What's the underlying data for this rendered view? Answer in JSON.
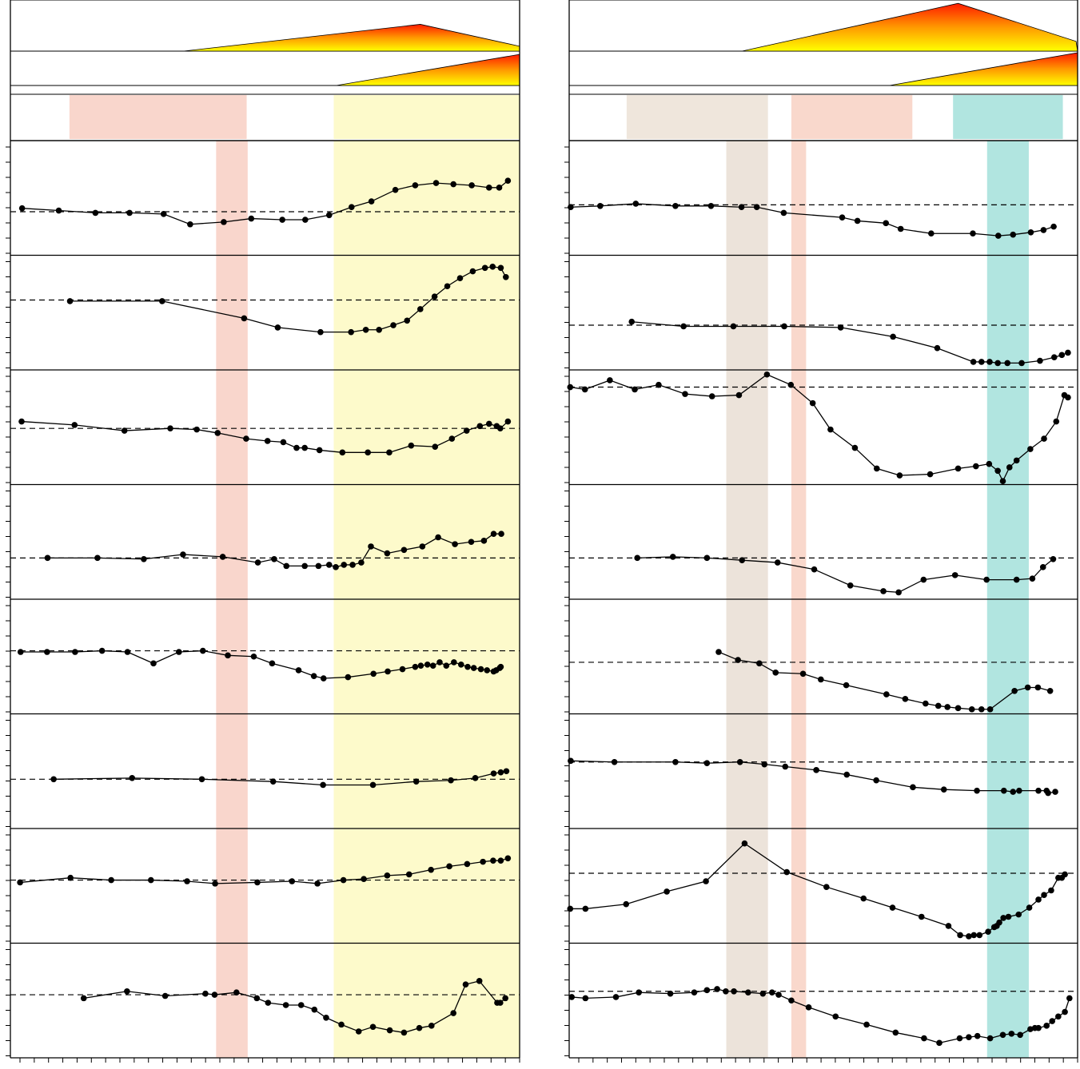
{
  "chart_data": [
    {
      "type": "line",
      "panel": "left",
      "title": "",
      "xlabel": "",
      "ylabel": "",
      "xlim": [
        0,
        100
      ],
      "grid": false,
      "legend": "none",
      "top_bars": [
        {
          "points": [
            [
              34,
              0
            ],
            [
              80.5,
              0.55
            ],
            [
              100,
              0.1
            ],
            [
              100,
              0
            ]
          ]
        },
        {
          "points": [
            [
              64,
              0
            ],
            [
              100,
              0.95
            ],
            [
              100,
              0
            ]
          ]
        }
      ],
      "bands": [
        {
          "name": "band-salmon",
          "color": "#f9d6cc",
          "x0": 11.6,
          "x1": 46.4,
          "scope": "legend"
        },
        {
          "name": "band-salmon",
          "color": "#f9d6cc",
          "x0": 40.4,
          "x1": 46.6,
          "scope": "panels"
        },
        {
          "name": "band-yellow",
          "color": "#fdfacb",
          "x0": 63.5,
          "x1": 100,
          "scope": "all"
        }
      ],
      "series": [
        {
          "baseline": 0.38,
          "x": [
            2.3,
            9.5,
            16.7,
            23.4,
            30.1,
            35.3,
            41.9,
            47.3,
            53.4,
            57.9,
            62.6,
            67.0,
            70.9,
            75.6,
            79.5,
            83.6,
            87.0,
            90.6,
            94.0,
            96.0,
            97.7
          ],
          "y": [
            0.41,
            0.39,
            0.37,
            0.37,
            0.36,
            0.27,
            0.29,
            0.32,
            0.31,
            0.31,
            0.35,
            0.42,
            0.47,
            0.57,
            0.61,
            0.63,
            0.62,
            0.61,
            0.59,
            0.59,
            0.65
          ]
        },
        {
          "baseline": 0.61,
          "x": [
            11.7,
            29.8,
            45.9,
            52.5,
            60.9,
            66.9,
            69.8,
            72.4,
            75.2,
            77.9,
            80.5,
            83.3,
            85.8,
            88.3,
            90.8,
            93.2,
            94.7,
            96.3,
            97.3
          ],
          "y": [
            0.6,
            0.6,
            0.45,
            0.37,
            0.33,
            0.33,
            0.35,
            0.35,
            0.39,
            0.43,
            0.53,
            0.64,
            0.73,
            0.8,
            0.86,
            0.89,
            0.9,
            0.89,
            0.81
          ]
        },
        {
          "baseline": 0.49,
          "x": [
            2.2,
            12.6,
            22.4,
            31.4,
            36.6,
            40.7,
            46.3,
            50.5,
            53.6,
            56.2,
            57.8,
            60.7,
            65.2,
            70.2,
            74.4,
            78.7,
            83.4,
            86.7,
            89.6,
            92.2,
            94.0,
            95.5,
            96.2,
            97.7
          ],
          "y": [
            0.55,
            0.52,
            0.47,
            0.49,
            0.48,
            0.45,
            0.4,
            0.38,
            0.37,
            0.32,
            0.32,
            0.3,
            0.28,
            0.28,
            0.28,
            0.34,
            0.33,
            0.4,
            0.47,
            0.51,
            0.53,
            0.51,
            0.49,
            0.55
          ]
        },
        {
          "baseline": 0.36,
          "x": [
            7.3,
            17.1,
            26.2,
            33.9,
            41.7,
            48.6,
            51.8,
            54.2,
            57.8,
            60.5,
            62.6,
            63.9,
            65.5,
            67.2,
            68.9,
            70.8,
            74.0,
            77.3,
            80.9,
            84.0,
            87.3,
            90.5,
            93.0,
            94.9,
            96.4
          ],
          "y": [
            0.36,
            0.36,
            0.35,
            0.39,
            0.37,
            0.32,
            0.35,
            0.29,
            0.29,
            0.29,
            0.3,
            0.28,
            0.3,
            0.3,
            0.32,
            0.46,
            0.4,
            0.43,
            0.46,
            0.54,
            0.48,
            0.5,
            0.51,
            0.57,
            0.57
          ]
        },
        {
          "baseline": 0.55,
          "x": [
            2.0,
            7.2,
            12.7,
            18.0,
            23.0,
            28.1,
            33.1,
            37.8,
            42.7,
            47.8,
            51.4,
            56.6,
            59.6,
            61.5,
            66.3,
            71.3,
            74.1,
            77.0,
            79.5,
            80.6,
            81.9,
            83.0,
            84.3,
            85.6,
            87.1,
            88.5,
            89.8,
            91.0,
            92.4,
            93.6,
            94.9,
            95.4,
            96.1,
            96.3
          ],
          "y": [
            0.54,
            0.54,
            0.54,
            0.55,
            0.54,
            0.44,
            0.54,
            0.55,
            0.51,
            0.5,
            0.44,
            0.38,
            0.33,
            0.31,
            0.32,
            0.35,
            0.37,
            0.39,
            0.41,
            0.42,
            0.43,
            0.42,
            0.45,
            0.42,
            0.45,
            0.43,
            0.41,
            0.4,
            0.39,
            0.38,
            0.37,
            0.38,
            0.4,
            0.41
          ]
        },
        {
          "baseline": 0.43,
          "x": [
            8.5,
            23.9,
            37.6,
            51.6,
            61.4,
            71.2,
            79.7,
            86.5,
            91.3,
            94.9,
            96.3,
            97.4
          ],
          "y": [
            0.43,
            0.44,
            0.43,
            0.41,
            0.38,
            0.38,
            0.41,
            0.42,
            0.44,
            0.48,
            0.49,
            0.5
          ]
        },
        {
          "baseline": 0.55,
          "x": [
            1.9,
            11.8,
            19.8,
            27.6,
            34.7,
            40.2,
            48.5,
            55.3,
            60.3,
            65.4,
            69.4,
            74.0,
            78.3,
            82.6,
            86.2,
            89.7,
            92.8,
            94.8,
            96.3,
            97.7
          ],
          "y": [
            0.53,
            0.57,
            0.55,
            0.55,
            0.54,
            0.52,
            0.53,
            0.54,
            0.52,
            0.55,
            0.56,
            0.59,
            0.6,
            0.64,
            0.67,
            0.69,
            0.71,
            0.72,
            0.72,
            0.74
          ]
        },
        {
          "baseline": 0.55,
          "x": [
            14.4,
            22.9,
            30.4,
            38.3,
            40.1,
            44.4,
            48.4,
            50.6,
            54.1,
            57.1,
            59.7,
            62.0,
            65.0,
            68.4,
            71.2,
            74.5,
            77.3,
            80.3,
            82.7,
            87.0,
            89.4,
            92.1,
            95.6,
            96.2,
            97.2
          ],
          "y": [
            0.52,
            0.58,
            0.54,
            0.56,
            0.55,
            0.57,
            0.52,
            0.48,
            0.46,
            0.46,
            0.42,
            0.35,
            0.29,
            0.23,
            0.27,
            0.24,
            0.22,
            0.26,
            0.28,
            0.39,
            0.64,
            0.67,
            0.48,
            0.48,
            0.52
          ]
        }
      ]
    },
    {
      "type": "line",
      "panel": "right",
      "title": "",
      "xlabel": "",
      "ylabel": "",
      "xlim": [
        0,
        100
      ],
      "grid": false,
      "legend": "none",
      "top_bars": [
        {
          "points": [
            [
              34,
              0
            ],
            [
              76.5,
              0.98
            ],
            [
              99.7,
              0.2
            ],
            [
              100,
              0
            ]
          ]
        },
        {
          "points": [
            [
              63,
              0
            ],
            [
              100,
              1.0
            ],
            [
              100,
              0
            ]
          ]
        }
      ],
      "bands": [
        {
          "name": "band-taupe",
          "color": "#efe6dc",
          "x0": 11.3,
          "x1": 39.1,
          "scope": "legend"
        },
        {
          "name": "band-taupe",
          "color": "#ece3da",
          "x0": 30.9,
          "x1": 39.1,
          "scope": "panels"
        },
        {
          "name": "band-salmon",
          "color": "#f9d8cc",
          "x0": 43.7,
          "x1": 67.5,
          "scope": "legend"
        },
        {
          "name": "band-salmon",
          "color": "#f9d8cc",
          "x0": 43.7,
          "x1": 46.6,
          "scope": "panels"
        },
        {
          "name": "band-teal",
          "color": "#b1e5e0",
          "x0": 75.5,
          "x1": 97.1,
          "scope": "legend"
        },
        {
          "name": "band-teal",
          "color": "#b1e5e0",
          "x0": 82.2,
          "x1": 90.4,
          "scope": "panels"
        }
      ],
      "series": [
        {
          "baseline": 0.44,
          "x": [
            0.3,
            6.1,
            13.1,
            20.9,
            27.9,
            33.9,
            36.9,
            42.2,
            53.7,
            56.7,
            62.3,
            65.2,
            71.2,
            79.4,
            84.4,
            87.3,
            90.8,
            93.3,
            95.3
          ],
          "y": [
            0.42,
            0.43,
            0.45,
            0.43,
            0.43,
            0.42,
            0.42,
            0.37,
            0.33,
            0.3,
            0.28,
            0.23,
            0.19,
            0.19,
            0.17,
            0.18,
            0.2,
            0.22,
            0.25
          ]
        },
        {
          "baseline": 0.39,
          "x": [
            12.3,
            22.5,
            32.3,
            42.3,
            53.4,
            63.7,
            72.4,
            79.5,
            81.1,
            82.7,
            84.3,
            86.2,
            89.0,
            92.6,
            95.4,
            96.9,
            98.1
          ],
          "y": [
            0.42,
            0.38,
            0.38,
            0.38,
            0.37,
            0.29,
            0.19,
            0.07,
            0.07,
            0.07,
            0.06,
            0.06,
            0.06,
            0.08,
            0.11,
            0.13,
            0.15
          ]
        },
        {
          "baseline": 0.85,
          "x": [
            0.2,
            3.1,
            8.0,
            12.9,
            17.6,
            22.8,
            28.1,
            33.4,
            38.9,
            43.6,
            47.9,
            51.4,
            56.2,
            60.5,
            65.0,
            71.0,
            76.5,
            80.0,
            82.6,
            84.3,
            85.3,
            86.6,
            88.0,
            90.7,
            93.4,
            95.8,
            97.4,
            98.1
          ],
          "y": [
            0.85,
            0.83,
            0.91,
            0.83,
            0.87,
            0.79,
            0.77,
            0.78,
            0.96,
            0.87,
            0.71,
            0.48,
            0.32,
            0.14,
            0.08,
            0.09,
            0.14,
            0.16,
            0.18,
            0.12,
            0.03,
            0.15,
            0.21,
            0.31,
            0.4,
            0.55,
            0.78,
            0.76
          ]
        },
        {
          "baseline": 0.36,
          "x": [
            13.4,
            20.4,
            27.1,
            34.0,
            41.0,
            48.2,
            55.3,
            61.8,
            64.8,
            69.7,
            75.9,
            82.1,
            88.0,
            91.1,
            93.2,
            95.2
          ],
          "y": [
            0.36,
            0.37,
            0.36,
            0.34,
            0.32,
            0.26,
            0.12,
            0.07,
            0.06,
            0.17,
            0.21,
            0.17,
            0.17,
            0.18,
            0.28,
            0.35
          ]
        },
        {
          "baseline": 0.45,
          "x": [
            29.4,
            33.2,
            37.4,
            40.6,
            46.0,
            49.5,
            54.5,
            62.4,
            66.1,
            70.1,
            72.6,
            74.4,
            76.5,
            79.2,
            81.1,
            82.8,
            87.6,
            90.2,
            92.2,
            94.6
          ],
          "y": [
            0.54,
            0.47,
            0.44,
            0.36,
            0.35,
            0.3,
            0.25,
            0.17,
            0.13,
            0.09,
            0.07,
            0.06,
            0.05,
            0.04,
            0.04,
            0.04,
            0.2,
            0.23,
            0.23,
            0.2
          ]
        },
        {
          "baseline": 0.58,
          "x": [
            0.3,
            8.9,
            20.9,
            27.1,
            33.6,
            38.4,
            42.5,
            48.6,
            54.6,
            60.4,
            67.6,
            73.7,
            80.2,
            85.5,
            87.3,
            88.5,
            92.3,
            93.9,
            94.2,
            95.6
          ],
          "y": [
            0.59,
            0.58,
            0.58,
            0.57,
            0.58,
            0.56,
            0.54,
            0.51,
            0.47,
            0.42,
            0.36,
            0.34,
            0.33,
            0.33,
            0.32,
            0.33,
            0.33,
            0.33,
            0.31,
            0.32
          ]
        },
        {
          "baseline": 0.61,
          "x": [
            0.2,
            3.2,
            11.2,
            19.2,
            26.9,
            34.5,
            42.8,
            50.6,
            57.9,
            63.6,
            69.3,
            74.6,
            76.9,
            78.6,
            79.6,
            80.7,
            82.4,
            83.6,
            84.1,
            84.6,
            85.4,
            86.4,
            88.4,
            90.5,
            92.3,
            93.4,
            94.8,
            96.2,
            96.9,
            97.5
          ],
          "y": [
            0.3,
            0.3,
            0.34,
            0.45,
            0.54,
            0.87,
            0.62,
            0.49,
            0.39,
            0.31,
            0.23,
            0.15,
            0.07,
            0.06,
            0.07,
            0.07,
            0.1,
            0.14,
            0.15,
            0.18,
            0.22,
            0.23,
            0.25,
            0.31,
            0.38,
            0.42,
            0.46,
            0.57,
            0.57,
            0.6
          ]
        },
        {
          "baseline": 0.58,
          "x": [
            0.5,
            3.2,
            9.2,
            13.7,
            19.9,
            24.6,
            27.1,
            29.1,
            30.8,
            32.4,
            35.2,
            38.1,
            39.9,
            41.2,
            43.7,
            47.1,
            52.4,
            58.5,
            64.2,
            69.8,
            72.8,
            76.8,
            78.6,
            80.3,
            82.8,
            85.3,
            87.0,
            88.7,
            90.7,
            91.6,
            92.3,
            93.9,
            95.0,
            96.2,
            97.5,
            98.4
          ],
          "y": [
            0.53,
            0.52,
            0.53,
            0.57,
            0.56,
            0.57,
            0.59,
            0.6,
            0.58,
            0.58,
            0.57,
            0.56,
            0.57,
            0.55,
            0.5,
            0.44,
            0.36,
            0.29,
            0.22,
            0.17,
            0.13,
            0.17,
            0.18,
            0.19,
            0.17,
            0.2,
            0.21,
            0.2,
            0.25,
            0.26,
            0.26,
            0.28,
            0.32,
            0.36,
            0.4,
            0.52
          ]
        }
      ]
    }
  ]
}
